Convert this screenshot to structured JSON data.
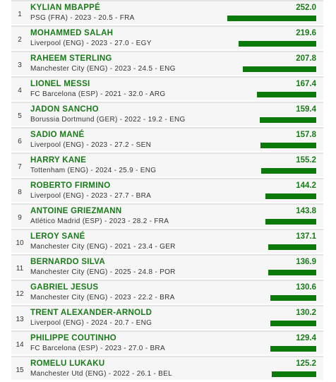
{
  "chart_data": {
    "type": "bar",
    "orientation": "horizontal",
    "title": "",
    "rows": [
      {
        "rank": "1",
        "name": "KYLIAN MBAPPÉ",
        "meta": "PSG (FRA) - 2023 - 20.5 - FRA",
        "value": 252.0,
        "value_label": "252.0"
      },
      {
        "rank": "2",
        "name": "MOHAMMED SALAH",
        "meta": "Liverpool (ENG) - 2023 - 27.0 - EGY",
        "value": 219.6,
        "value_label": "219.6"
      },
      {
        "rank": "3",
        "name": "RAHEEM STERLING",
        "meta": "Manchester City (ENG) - 2023 - 24.5 - ENG",
        "value": 207.8,
        "value_label": "207.8"
      },
      {
        "rank": "4",
        "name": "LIONEL MESSI",
        "meta": "FC Barcelona (ESP) - 2021 - 32.0 - ARG",
        "value": 167.4,
        "value_label": "167.4"
      },
      {
        "rank": "5",
        "name": "JADON SANCHO",
        "meta": "Borussia Dortmund (GER) - 2022 - 19.2 - ENG",
        "value": 159.4,
        "value_label": "159.4"
      },
      {
        "rank": "6",
        "name": "SADIO MANÉ",
        "meta": "Liverpool (ENG) - 2023 - 27.2 - SEN",
        "value": 157.8,
        "value_label": "157.8"
      },
      {
        "rank": "7",
        "name": "HARRY KANE",
        "meta": "Tottenham (ENG) - 2024 - 25.9 - ENG",
        "value": 155.2,
        "value_label": "155.2"
      },
      {
        "rank": "8",
        "name": "ROBERTO FIRMINO",
        "meta": "Liverpool (ENG) - 2023 - 27.7 - BRA",
        "value": 144.2,
        "value_label": "144.2"
      },
      {
        "rank": "9",
        "name": "ANTOINE GRIEZMANN",
        "meta": "Atlético Madrid (ESP) - 2023 - 28.2 - FRA",
        "value": 143.8,
        "value_label": "143.8"
      },
      {
        "rank": "10",
        "name": "LEROY SANÉ",
        "meta": "Manchester City (ENG) - 2021 - 23.4 - GER",
        "value": 137.1,
        "value_label": "137.1"
      },
      {
        "rank": "11",
        "name": "BERNARDO SILVA",
        "meta": "Manchester City (ENG) - 2025 - 24.8 - POR",
        "value": 136.9,
        "value_label": "136.9"
      },
      {
        "rank": "12",
        "name": "GABRIEL JESUS",
        "meta": "Manchester City (ENG) - 2023 - 22.2 - BRA",
        "value": 130.6,
        "value_label": "130.6"
      },
      {
        "rank": "13",
        "name": "TRENT ALEXANDER-ARNOLD",
        "meta": "Liverpool (ENG) - 2024 - 20.7 - ENG",
        "value": 130.2,
        "value_label": "130.2"
      },
      {
        "rank": "14",
        "name": "PHILIPPE COUTINHO",
        "meta": "FC Barcelona (ESP) - 2023 - 27.0 - BRA",
        "value": 129.4,
        "value_label": "129.4"
      },
      {
        "rank": "15",
        "name": "ROMELU LUKAKU",
        "meta": "Manchester Utd (ENG) - 2022 - 26.1 - BEL",
        "value": 125.2,
        "value_label": "125.2"
      }
    ],
    "colors": {
      "bar": "#0b7a0b",
      "label": "#1a7a1a",
      "row_bg": "#f6f6f6"
    }
  }
}
